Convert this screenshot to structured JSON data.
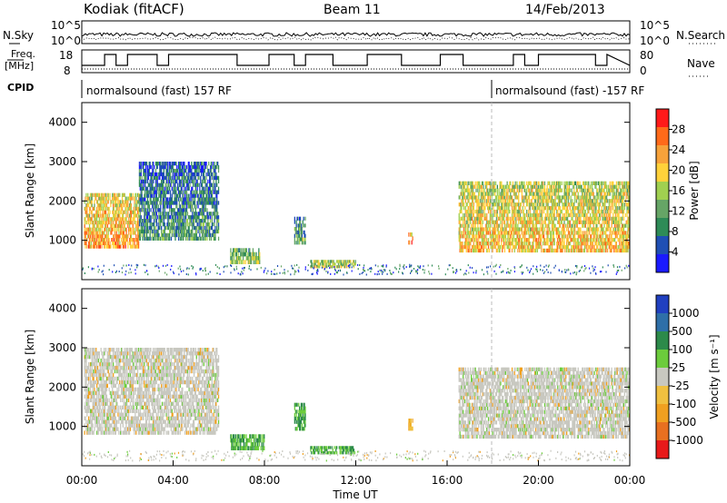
{
  "header": {
    "radar": "Kodiak (fitACF)",
    "beam": "Beam 11",
    "date": "14/Feb/2013"
  },
  "top_panels": {
    "nsky_label": "N.Sky",
    "nsearch_label": "N.Search",
    "nsky_ticks": [
      "10^5",
      "10^0"
    ],
    "nsearch_ticks": [
      "10^5",
      "10^0"
    ],
    "freq_label": "Freq.",
    "freq_unit": "[MHz]",
    "freq_ticks": [
      "18",
      "8"
    ],
    "nave_label": "Nave",
    "nave_ticks": [
      "80",
      "0"
    ],
    "cpid_label": "CPID",
    "cpid_segments": [
      {
        "label": "normalsound (fast) 157 RF",
        "start_h": 0.0
      },
      {
        "label": "normalsound (fast) -157 RF",
        "start_h": 18.0
      }
    ]
  },
  "colors": {
    "power_scale": [
      "#1a1aff",
      "#1f4fb4",
      "#2e8b57",
      "#66a566",
      "#a0d050",
      "#ffd23a",
      "#f7a23a",
      "#ff6a1a",
      "#ff1a1a"
    ],
    "velocity_scale": [
      "#2040c0",
      "#2e6fa8",
      "#2c8a4a",
      "#6ccc3c",
      "#c8c8c0",
      "#f0c040",
      "#f0a020",
      "#e87020",
      "#e81a1a"
    ]
  },
  "chart_data": [
    {
      "type": "heatmap",
      "title": "",
      "xlabel": "",
      "ylabel": "Slant Range [km]",
      "xlim_hours": [
        0,
        24
      ],
      "ylim_km": [
        0,
        4500
      ],
      "y_ticks": [
        "1000",
        "2000",
        "3000",
        "4000"
      ],
      "colorbar_label": "Power [dB]",
      "colorbar_ticks": [
        "4",
        "8",
        "12",
        "16",
        "20",
        "24",
        "28"
      ],
      "echo_regions": [
        {
          "t0": 0.1,
          "t1": 2.5,
          "r0": 800,
          "r1": 2200,
          "power_db": 24
        },
        {
          "t0": 2.5,
          "t1": 6.0,
          "r0": 1000,
          "r1": 3000,
          "power_db": 10
        },
        {
          "t0": 6.5,
          "t1": 7.8,
          "r0": 400,
          "r1": 800,
          "power_db": 16
        },
        {
          "t0": 9.3,
          "t1": 9.8,
          "r0": 900,
          "r1": 1600,
          "power_db": 12
        },
        {
          "t0": 10.0,
          "t1": 12.0,
          "r0": 300,
          "r1": 500,
          "power_db": 18
        },
        {
          "t0": 14.3,
          "t1": 14.5,
          "r0": 900,
          "r1": 1200,
          "power_db": 26
        },
        {
          "t0": 16.5,
          "t1": 24.0,
          "r0": 700,
          "r1": 2500,
          "power_db": 22
        }
      ]
    },
    {
      "type": "heatmap",
      "title": "",
      "xlabel": "Time UT",
      "ylabel": "Slant Range [km]",
      "xlim_hours": [
        0,
        24
      ],
      "ylim_km": [
        0,
        4500
      ],
      "x_ticks": [
        "00:00",
        "04:00",
        "08:00",
        "12:00",
        "16:00",
        "20:00",
        "00:00"
      ],
      "y_ticks": [
        "1000",
        "2000",
        "3000",
        "4000"
      ],
      "colorbar_label": "Velocity [m s⁻¹]",
      "colorbar_ticks": [
        "1000",
        "500",
        "100",
        "25",
        "-25",
        "-100",
        "-500",
        "-1000"
      ],
      "echo_regions": [
        {
          "t0": 0.1,
          "t1": 6.0,
          "r0": 800,
          "r1": 3000,
          "velocity": 0
        },
        {
          "t0": 6.5,
          "t1": 8.0,
          "r0": 400,
          "r1": 800,
          "velocity": 200
        },
        {
          "t0": 9.3,
          "t1": 9.8,
          "r0": 900,
          "r1": 1600,
          "velocity": 300
        },
        {
          "t0": 10.0,
          "t1": 12.0,
          "r0": 300,
          "r1": 500,
          "velocity": 150
        },
        {
          "t0": 14.3,
          "t1": 14.5,
          "r0": 900,
          "r1": 1200,
          "velocity": -150
        },
        {
          "t0": 16.5,
          "t1": 24.0,
          "r0": 700,
          "r1": 2500,
          "velocity": 0
        }
      ]
    }
  ]
}
